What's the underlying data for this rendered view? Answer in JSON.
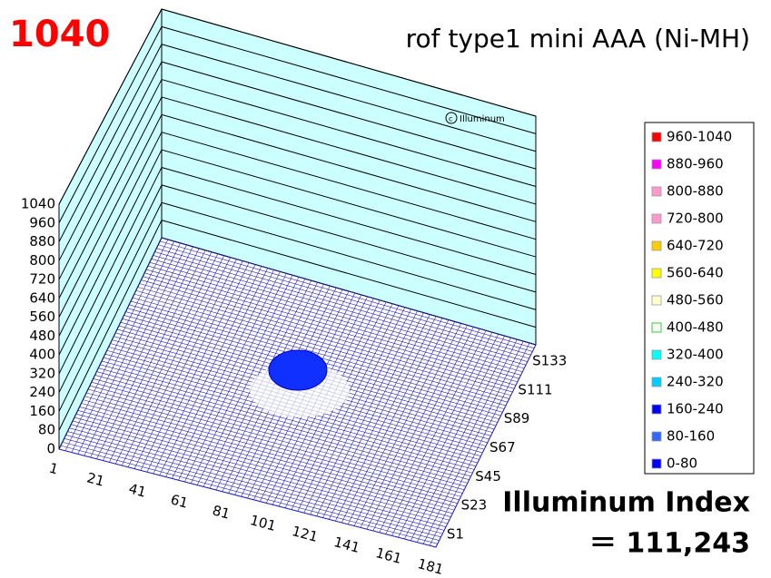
{
  "chart_data": {
    "type": "surface",
    "title": "rof type1 mini AAA (Ni-MH)",
    "max_label": "1040",
    "watermark": "Illuminum",
    "zlim": [
      0,
      1040
    ],
    "zticks": [
      0,
      80,
      160,
      240,
      320,
      400,
      480,
      560,
      640,
      720,
      800,
      880,
      960,
      1040
    ],
    "xlim": [
      1,
      181
    ],
    "xticks": [
      1,
      21,
      41,
      61,
      81,
      101,
      121,
      141,
      161,
      181
    ],
    "y_categories": [
      "S1",
      "S23",
      "S45",
      "S67",
      "S89",
      "S111",
      "S133"
    ],
    "wall_color": "#ccffff",
    "mesh_color": "#2020c0",
    "legend": [
      {
        "label": "960-1040",
        "color": "#ff0000"
      },
      {
        "label": "880-960",
        "color": "#ff00ff"
      },
      {
        "label": "800-880",
        "color": "#ff99cc"
      },
      {
        "label": "720-800",
        "color": "#ff99cc"
      },
      {
        "label": "640-720",
        "color": "#ffcc00"
      },
      {
        "label": "560-640",
        "color": "#ffff00"
      },
      {
        "label": "480-560",
        "color": "#ffffcc"
      },
      {
        "label": "400-480",
        "color": "#ffffff"
      },
      {
        "label": "320-400",
        "color": "#00ffff"
      },
      {
        "label": "240-320",
        "color": "#00ccff"
      },
      {
        "label": "160-240",
        "color": "#0000ff"
      },
      {
        "label": "80-160",
        "color": "#3366ff"
      },
      {
        "label": "0-80",
        "color": "#0000ff"
      }
    ],
    "index_label": "Illuminum Index",
    "index_value": 111243,
    "index_value_label": "＝ 111,243"
  }
}
